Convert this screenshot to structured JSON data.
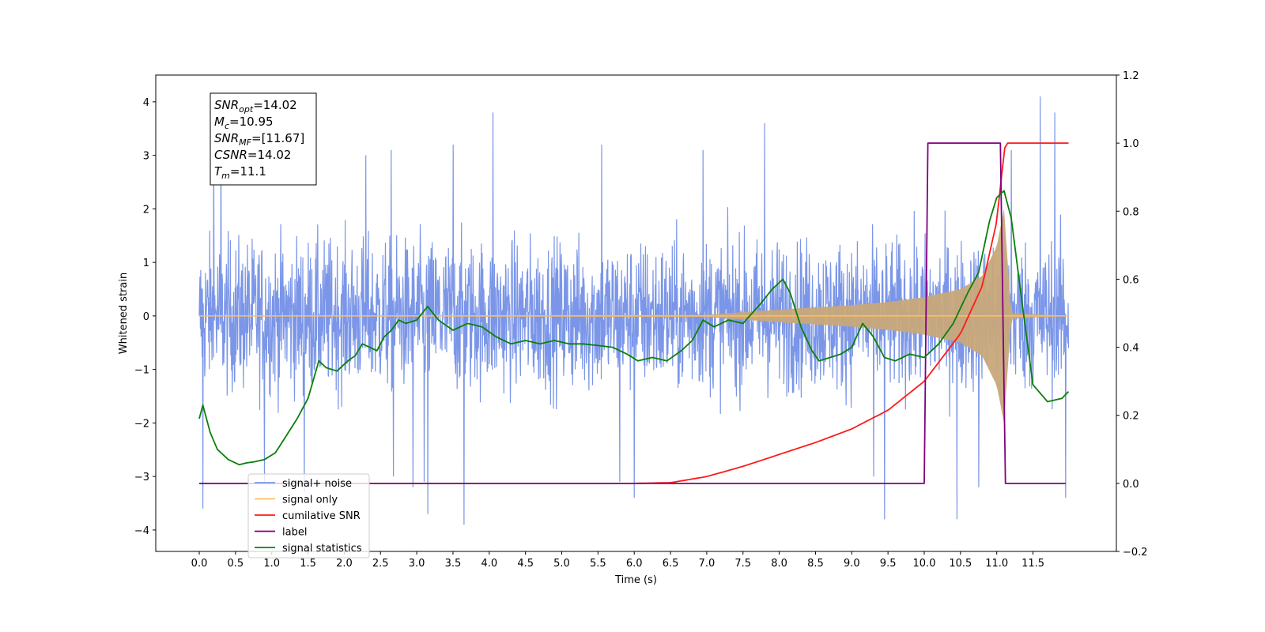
{
  "chart_data": {
    "type": "line",
    "xlabel": "Time (s)",
    "ylabel": "Whitened strain",
    "xlim": [
      -0.6,
      12.65
    ],
    "xticks": [
      "0.0",
      "0.5",
      "1.0",
      "1.5",
      "2.0",
      "2.5",
      "3.0",
      "3.5",
      "4.0",
      "4.5",
      "5.0",
      "5.5",
      "6.0",
      "6.5",
      "7.0",
      "7.5",
      "8.0",
      "8.5",
      "9.0",
      "9.5",
      "10.0",
      "10.5",
      "11.0",
      "11.5"
    ],
    "ylim_left": [
      -4.4,
      4.5
    ],
    "yticks_left": [
      "4",
      "3",
      "2",
      "1",
      "0",
      "−1",
      "−2",
      "−3",
      "−4"
    ],
    "ylim_right": [
      -0.2,
      1.2
    ],
    "yticks_right": [
      "1.2",
      "1.0",
      "0.8",
      "0.6",
      "0.4",
      "0.2",
      "0.0",
      "−0.2"
    ],
    "info_box": [
      {
        "sym": "SNR",
        "sub": "opt",
        "val": "=14.02"
      },
      {
        "sym": "M",
        "sub": "c",
        "val": "=10.95"
      },
      {
        "sym": "SNR",
        "sub": "MF",
        "val": "=[11.67]"
      },
      {
        "sym": "CSNR",
        "sub": "",
        "val": "=14.02"
      },
      {
        "sym": "T",
        "sub": "m",
        "val": "=11.1"
      }
    ],
    "legend": {
      "placement": "lower-left",
      "entries": [
        {
          "label": "signal+ noise",
          "color": "#7b96e8"
        },
        {
          "label": "signal only",
          "color": "#ffbf5e"
        },
        {
          "label": "cumilative SNR",
          "color": "#ff1a1a"
        },
        {
          "label": "label",
          "color": "#800080"
        },
        {
          "label": "signal statistics",
          "color": "#0a800a"
        }
      ]
    },
    "colors": {
      "noise": "#7b96e8",
      "signal_fill": "#c8a87a",
      "signal_line": "#ffbf5e",
      "cum_snr": "#ff1a1a",
      "label": "#800080",
      "stats": "#0a800a"
    },
    "series": [
      {
        "name": "signal+ noise",
        "axis": "left",
        "x_range": [
          0.0,
          11.99
        ],
        "typical_band": [
          -2.0,
          2.0
        ],
        "extremes": [
          {
            "x": 0.05,
            "y": -3.6
          },
          {
            "x": 0.2,
            "y": 3.4
          },
          {
            "x": 0.3,
            "y": 3.5
          },
          {
            "x": 0.9,
            "y": -3.1
          },
          {
            "x": 1.45,
            "y": -3.3
          },
          {
            "x": 2.3,
            "y": 3.0
          },
          {
            "x": 2.65,
            "y": 3.1
          },
          {
            "x": 2.68,
            "y": -3.0
          },
          {
            "x": 2.95,
            "y": -3.2
          },
          {
            "x": 3.1,
            "y": -3.1
          },
          {
            "x": 3.15,
            "y": -3.7
          },
          {
            "x": 3.5,
            "y": 3.2
          },
          {
            "x": 3.65,
            "y": -3.9
          },
          {
            "x": 4.05,
            "y": 3.8
          },
          {
            "x": 5.55,
            "y": 3.2
          },
          {
            "x": 5.8,
            "y": -3.1
          },
          {
            "x": 6.0,
            "y": -3.4
          },
          {
            "x": 6.95,
            "y": 3.1
          },
          {
            "x": 7.8,
            "y": 3.6
          },
          {
            "x": 9.3,
            "y": -3.0
          },
          {
            "x": 9.45,
            "y": -3.8
          },
          {
            "x": 10.45,
            "y": -3.8
          },
          {
            "x": 10.75,
            "y": -3.2
          },
          {
            "x": 11.2,
            "y": 3.1
          },
          {
            "x": 11.6,
            "y": 4.1
          },
          {
            "x": 11.8,
            "y": 3.8
          },
          {
            "x": 11.95,
            "y": -3.4
          }
        ]
      },
      {
        "name": "signal only",
        "axis": "left",
        "envelope": {
          "x": [
            0.0,
            7.0,
            7.5,
            8.0,
            8.5,
            9.0,
            9.5,
            10.0,
            10.5,
            10.8,
            11.0,
            11.1,
            11.2,
            12.0
          ],
          "y": [
            0.0,
            0.02,
            0.07,
            0.12,
            0.16,
            0.2,
            0.26,
            0.35,
            0.5,
            0.75,
            1.3,
            2.0,
            0.05,
            0.0
          ]
        }
      },
      {
        "name": "cumilative SNR",
        "axis": "right",
        "x": [
          0.0,
          6.0,
          6.5,
          7.0,
          7.5,
          8.0,
          8.5,
          9.0,
          9.5,
          10.0,
          10.5,
          10.8,
          11.0,
          11.1,
          11.12,
          11.99
        ],
        "y": [
          0.0,
          0.0,
          0.002,
          0.02,
          0.05,
          0.085,
          0.12,
          0.16,
          0.215,
          0.3,
          0.44,
          0.58,
          0.77,
          0.97,
          1.0,
          1.0
        ]
      },
      {
        "name": "label",
        "axis": "right",
        "x": [
          0.0,
          10.0,
          10.05,
          11.05,
          11.12,
          11.95
        ],
        "y": [
          0.0,
          0.0,
          1.0,
          1.0,
          0.0,
          0.0
        ]
      },
      {
        "name": "signal statistics",
        "axis": "right",
        "x": [
          0.0,
          0.05,
          0.15,
          0.25,
          0.4,
          0.55,
          0.65,
          0.75,
          0.9,
          1.05,
          1.2,
          1.35,
          1.5,
          1.65,
          1.75,
          1.9,
          2.05,
          2.15,
          2.25,
          2.35,
          2.45,
          2.55,
          2.65,
          2.75,
          2.85,
          3.0,
          3.15,
          3.3,
          3.5,
          3.7,
          3.9,
          4.1,
          4.3,
          4.5,
          4.7,
          4.9,
          5.1,
          5.3,
          5.5,
          5.7,
          5.9,
          6.05,
          6.25,
          6.45,
          6.65,
          6.8,
          6.95,
          7.1,
          7.3,
          7.5,
          7.75,
          7.9,
          8.05,
          8.15,
          8.3,
          8.45,
          8.55,
          8.7,
          8.85,
          9.0,
          9.15,
          9.3,
          9.45,
          9.6,
          9.8,
          10.0,
          10.2,
          10.4,
          10.6,
          10.75,
          10.9,
          11.0,
          11.1,
          11.2,
          11.35,
          11.5,
          11.7,
          11.9,
          11.99
        ],
        "y": [
          0.19,
          0.23,
          0.15,
          0.1,
          0.07,
          0.055,
          0.06,
          0.063,
          0.07,
          0.09,
          0.14,
          0.19,
          0.25,
          0.36,
          0.34,
          0.33,
          0.36,
          0.375,
          0.41,
          0.4,
          0.39,
          0.43,
          0.45,
          0.48,
          0.47,
          0.48,
          0.52,
          0.48,
          0.45,
          0.47,
          0.46,
          0.43,
          0.41,
          0.42,
          0.41,
          0.42,
          0.41,
          0.41,
          0.405,
          0.4,
          0.38,
          0.36,
          0.37,
          0.36,
          0.39,
          0.42,
          0.48,
          0.46,
          0.48,
          0.47,
          0.53,
          0.57,
          0.6,
          0.56,
          0.46,
          0.39,
          0.36,
          0.37,
          0.38,
          0.4,
          0.47,
          0.43,
          0.37,
          0.36,
          0.38,
          0.37,
          0.41,
          0.47,
          0.56,
          0.62,
          0.77,
          0.84,
          0.86,
          0.78,
          0.53,
          0.29,
          0.24,
          0.25,
          0.27
        ]
      }
    ]
  }
}
